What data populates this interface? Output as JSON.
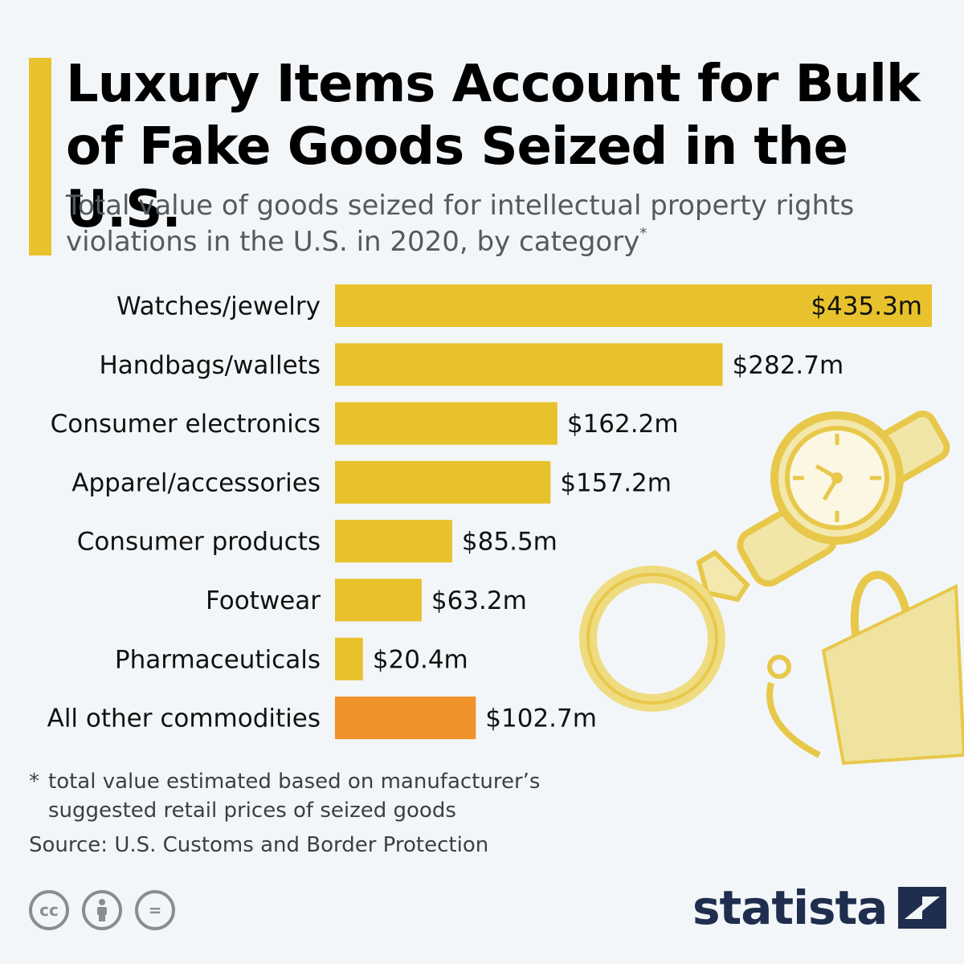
{
  "header": {
    "title": "Luxury Items Account for Bulk of Fake Goods Seized in the U.S.",
    "subtitle": "Total value of goods seized for intellectual property rights violations in the U.S. in 2020, by category",
    "subtitle_marker": "*"
  },
  "chart_data": {
    "type": "bar",
    "orientation": "horizontal",
    "categories": [
      "Watches/jewelry",
      "Handbags/wallets",
      "Consumer electronics",
      "Apparel/accessories",
      "Consumer products",
      "Footwear",
      "Pharmaceuticals",
      "All other commodities"
    ],
    "values": [
      435.3,
      282.7,
      162.2,
      157.2,
      85.5,
      63.2,
      20.4,
      102.7
    ],
    "value_labels": [
      "$435.3m",
      "$282.7m",
      "$162.2m",
      "$157.2m",
      "$85.5m",
      "$63.2m",
      "$20.4m",
      "$102.7m"
    ],
    "colors": [
      "#e8c22c",
      "#e8c22c",
      "#e8c22c",
      "#e8c22c",
      "#e8c22c",
      "#e8c22c",
      "#e8c22c",
      "#f0922a"
    ],
    "xlim": [
      0,
      435.3
    ],
    "grid": false,
    "legend": "none"
  },
  "footer": {
    "footnote_marker": "*",
    "footnote_line1": "total value estimated based on manufacturer’s",
    "footnote_line2": "suggested retail prices of seized goods",
    "source": "Source: U.S. Customs and Border Protection",
    "cc_label": "cc",
    "eq_label": "=",
    "brand": "statista"
  },
  "colors": {
    "background": "#f3f6f8",
    "accent": "#e8c22c",
    "other": "#f0922a",
    "brand": "#1f2d4e",
    "illustration": "#efdf91"
  },
  "illustration_icons": [
    "watch-icon",
    "ring-icon",
    "handbag-icon"
  ]
}
